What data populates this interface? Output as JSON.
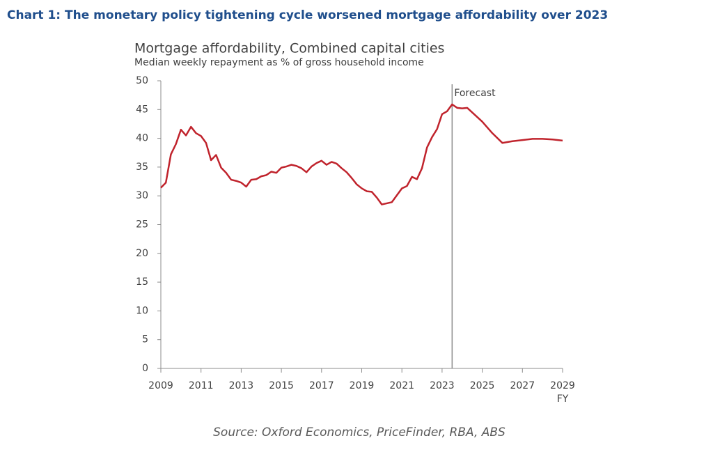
{
  "header": {
    "title": "Chart 1: The monetary policy tightening cycle worsened mortgage affordability over 2023"
  },
  "chart_data": {
    "type": "line",
    "title": "Mortgage affordability, Combined capital cities",
    "subtitle": "Median weekly repayment as % of gross household income",
    "x_label": "FY",
    "source": "Source: Oxford Economics, PriceFinder, RBA, ABS",
    "x": [
      2009,
      2009.25,
      2009.5,
      2009.75,
      2010,
      2010.25,
      2010.5,
      2010.75,
      2011,
      2011.25,
      2011.5,
      2011.75,
      2012,
      2012.25,
      2012.5,
      2012.75,
      2013,
      2013.25,
      2013.5,
      2013.75,
      2014,
      2014.25,
      2014.5,
      2014.75,
      2015,
      2015.25,
      2015.5,
      2015.75,
      2016,
      2016.25,
      2016.5,
      2016.75,
      2017,
      2017.25,
      2017.5,
      2017.75,
      2018,
      2018.25,
      2018.5,
      2018.75,
      2019,
      2019.25,
      2019.5,
      2019.75,
      2020,
      2020.25,
      2020.5,
      2020.75,
      2021,
      2021.25,
      2021.5,
      2021.75,
      2022,
      2022.25,
      2022.5,
      2022.75,
      2023,
      2023.25,
      2023.5,
      2023.75,
      2024,
      2024.25,
      2024.5,
      2025,
      2025.5,
      2026,
      2026.5,
      2027,
      2027.5,
      2028,
      2028.5,
      2029
    ],
    "series": [
      {
        "name": "Mortgage affordability",
        "color": "#c0232c",
        "values": [
          31.4,
          32.3,
          37.2,
          39.0,
          41.5,
          40.5,
          42.0,
          40.9,
          40.4,
          39.2,
          36.2,
          37.1,
          34.9,
          34.0,
          32.8,
          32.6,
          32.3,
          31.6,
          32.8,
          32.9,
          33.4,
          33.6,
          34.2,
          34.0,
          34.9,
          35.1,
          35.4,
          35.2,
          34.8,
          34.1,
          35.1,
          35.7,
          36.1,
          35.4,
          35.9,
          35.6,
          34.8,
          34.1,
          33.1,
          32.0,
          31.3,
          30.8,
          30.7,
          29.7,
          28.5,
          28.7,
          28.9,
          30.1,
          31.3,
          31.7,
          33.3,
          32.9,
          34.8,
          38.4,
          40.2,
          41.6,
          44.2,
          44.7,
          45.9,
          45.3,
          45.2,
          45.3,
          44.5,
          42.9,
          40.9,
          39.2,
          39.5,
          39.7,
          39.9,
          39.9,
          39.8,
          39.6
        ]
      }
    ],
    "annotations": [
      {
        "text": "Forecast",
        "x": 2023.5
      }
    ],
    "xlim": [
      2009,
      2029
    ],
    "xticks": [
      2009,
      2011,
      2013,
      2015,
      2017,
      2019,
      2021,
      2023,
      2025,
      2027,
      2029
    ],
    "ylim": [
      0,
      50
    ],
    "yticks": [
      0,
      5,
      10,
      15,
      20,
      25,
      30,
      35,
      40,
      45,
      50
    ],
    "grid": false
  }
}
